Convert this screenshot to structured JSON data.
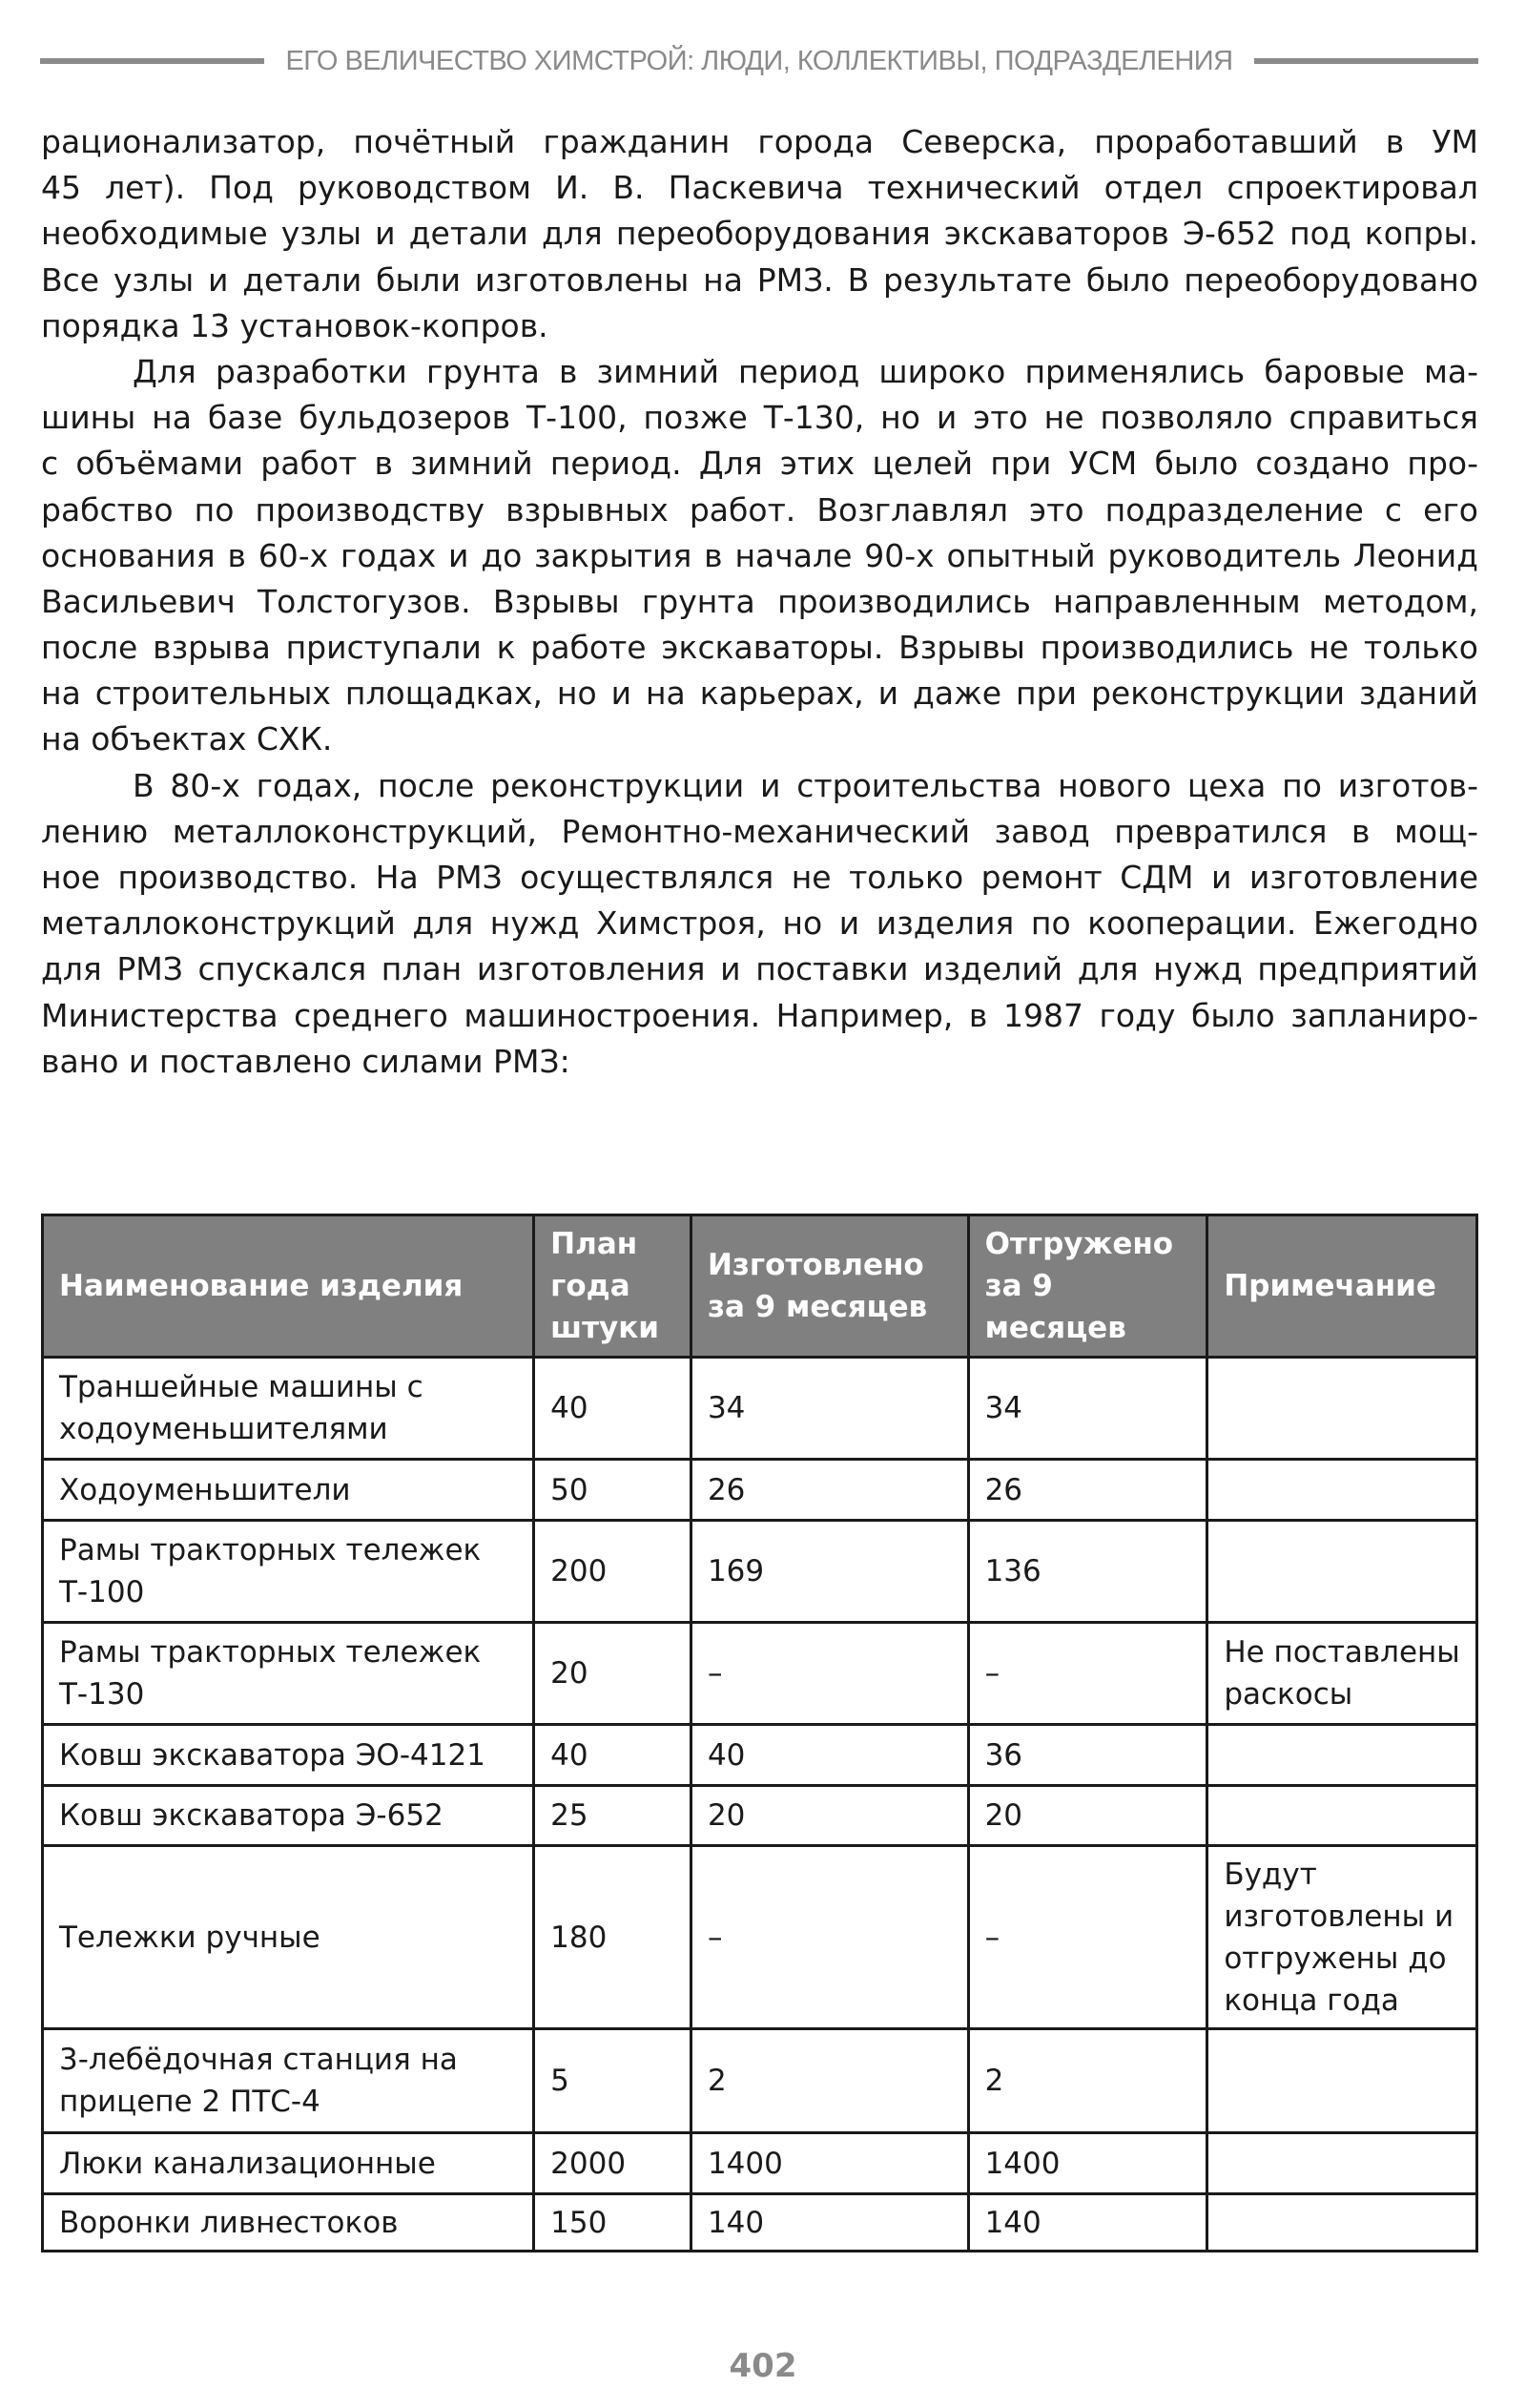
{
  "running_head": "ЕГО ВЕЛИЧЕСТВО ХИМСТРОЙ: ЛЮДИ, КОЛЛЕКТИВЫ, ПОДРАЗДЕЛЕНИЯ",
  "paragraphs": [
    {
      "indent": false,
      "lines": [
        "рационализатор, почётный гражданин города Северска, проработавший в УМ",
        "45 лет). Под руководством И. В. Паскевича технический отдел спроектировал",
        "необходимые узлы и детали для переоборудования экскаваторов Э-652 под копры.",
        "Все узлы и детали были изготовлены на РМЗ. В результате было переоборудовано",
        "порядка 13 установок-копров."
      ]
    },
    {
      "indent": true,
      "lines": [
        "Для разработки грунта в зимний период широко применялись баровые ма-",
        "шины на базе бульдозеров Т-100, позже Т-130, но и это не позволяло справиться",
        "с объёмами работ в зимний период. Для этих целей при УСМ было создано про-",
        "рабство по производству взрывных работ. Возглавлял это подразделение с его",
        "основания в 60-х годах и до закрытия в начале 90-х опытный руководитель Леонид",
        "Васильевич Толстогузов. Взрывы грунта производились направленным методом,",
        "после взрыва приступали к работе экскаваторы. Взрывы производились не только",
        "на строительных площадках, но и на карьерах, и даже при реконструкции зданий",
        "на объектах СХК."
      ]
    },
    {
      "indent": true,
      "lines": [
        "В 80-х годах, после реконструкции и строительства нового цеха по изготов-",
        "лению металлоконструкций, Ремонтно-механический завод превратился в мощ-",
        "ное производство. На РМЗ осуществлялся не только ремонт СДМ и изготовление",
        "металлоконструкций для нужд Химстроя, но и изделия по кооперации. Ежегодно",
        "для РМЗ спускался план изготовления и поставки изделий для нужд предприятий",
        "Министерства среднего машиностроения. Например, в 1987 году было запланиро-",
        "вано и поставлено силами РМЗ:"
      ]
    }
  ],
  "table": {
    "headers": [
      "Наименование изделия",
      "План года штуки",
      "Изготовлено за 9 месяцев",
      "Отгружено за 9 месяцев",
      "Примечание"
    ],
    "rows": [
      [
        "Траншейные машины с ходоуменьшителями",
        "40",
        "34",
        "34",
        ""
      ],
      [
        "Ходоуменьшители",
        "50",
        "26",
        "26",
        ""
      ],
      [
        "Рамы тракторных тележек Т-100",
        "200",
        "169",
        "136",
        ""
      ],
      [
        "Рамы тракторных тележек Т-130",
        "20",
        "–",
        "–",
        "Не поставлены раскосы"
      ],
      [
        "Ковш экскаватора ЭО-4121",
        "40",
        "40",
        "36",
        ""
      ],
      [
        "Ковш экскаватора Э-652",
        "25",
        "20",
        "20",
        ""
      ],
      [
        "Тележки ручные",
        "180",
        "–",
        "–",
        "Будут изготовлены и отгружены до конца года"
      ],
      [
        "3-лебёдочная станция на прицепе 2 ПТС-4",
        "5",
        "2",
        "2",
        ""
      ],
      [
        "Люки канализационные",
        "2000",
        "1400",
        "1400",
        ""
      ],
      [
        "Воронки ливнестоков",
        "150",
        "140",
        "140",
        ""
      ]
    ]
  },
  "page_number": "402"
}
